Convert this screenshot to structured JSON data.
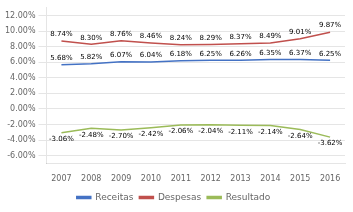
{
  "chart_data": {
    "type": "line",
    "x": [
      2007,
      2008,
      2009,
      2010,
      2011,
      2012,
      2013,
      2014,
      2015,
      2016
    ],
    "xlim": [
      2006.5,
      2016.5
    ],
    "xticks": [
      2007,
      2008,
      2009,
      2010,
      2011,
      2012,
      2013,
      2014,
      2015,
      2016
    ],
    "ylim": [
      -7.0,
      13.0
    ],
    "yticks": [
      {
        "value": -6,
        "label": "-6.00%"
      },
      {
        "value": -4,
        "label": "-4.00%"
      },
      {
        "value": -2,
        "label": "-2.00%"
      },
      {
        "value": 0,
        "label": "0.00%"
      },
      {
        "value": 2,
        "label": "2.00%"
      },
      {
        "value": 4,
        "label": "4.00%"
      },
      {
        "value": 6,
        "label": "6.00%"
      },
      {
        "value": 8,
        "label": "8.00%"
      },
      {
        "value": 10,
        "label": "10.00%"
      },
      {
        "value": 12,
        "label": "12.00%"
      }
    ],
    "grid": true,
    "legend": "bottom",
    "data_labels": true,
    "series": [
      {
        "name": "Receitas",
        "color": "#4472c4",
        "values": [
          5.68,
          5.82,
          6.07,
          6.04,
          6.18,
          6.25,
          6.26,
          6.35,
          6.37,
          6.25
        ],
        "value_labels": [
          "5.68%",
          "5.82%",
          "6.07%",
          "6.04%",
          "6.18%",
          "6.25%",
          "6.26%",
          "6.35%",
          "6.37%",
          "6.25%"
        ]
      },
      {
        "name": "Despesas",
        "color": "#c0504d",
        "values": [
          8.74,
          8.3,
          8.76,
          8.46,
          8.24,
          8.29,
          8.37,
          8.49,
          9.01,
          9.87
        ],
        "value_labels": [
          "8.74%",
          "8.30%",
          "8.76%",
          "8.46%",
          "8.24%",
          "8.29%",
          "8.37%",
          "8.49%",
          "9.01%",
          "9.87%"
        ]
      },
      {
        "name": "Resultado",
        "color": "#9bbb59",
        "values": [
          -3.06,
          -2.48,
          -2.7,
          -2.42,
          -2.06,
          -2.04,
          -2.11,
          -2.14,
          -2.64,
          -3.62
        ],
        "value_labels": [
          "-3.06%",
          "-2.48%",
          "-2.70%",
          "-2.42%",
          "-2.06%",
          "-2.04%",
          "-2.11%",
          "-2.14%",
          "-2.64%",
          "-3.62%"
        ]
      }
    ]
  }
}
